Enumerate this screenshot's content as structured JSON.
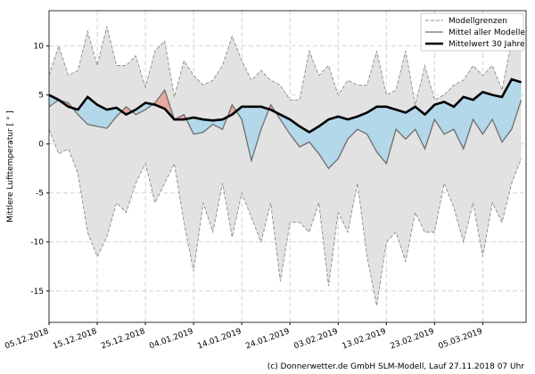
{
  "chart_data": {
    "type": "line",
    "ylabel": "Mittlere Lufttemperatur [ ° ]",
    "source": "(c) Donnerwetter.de GmbH SLM-Modell, Lauf 27.11.2018 07 Uhr",
    "x": [
      "2018-12-05",
      "2018-12-07",
      "2018-12-09",
      "2018-12-11",
      "2018-12-13",
      "2018-12-15",
      "2018-12-17",
      "2018-12-19",
      "2018-12-21",
      "2018-12-23",
      "2018-12-25",
      "2018-12-27",
      "2018-12-29",
      "2018-12-31",
      "2019-01-02",
      "2019-01-04",
      "2019-01-06",
      "2019-01-08",
      "2019-01-10",
      "2019-01-12",
      "2019-01-14",
      "2019-01-16",
      "2019-01-18",
      "2019-01-20",
      "2019-01-22",
      "2019-01-24",
      "2019-01-26",
      "2019-01-28",
      "2019-01-30",
      "2019-02-01",
      "2019-02-03",
      "2019-02-05",
      "2019-02-07",
      "2019-02-09",
      "2019-02-11",
      "2019-02-13",
      "2019-02-15",
      "2019-02-17",
      "2019-02-19",
      "2019-02-21",
      "2019-02-23",
      "2019-02-25",
      "2019-02-27",
      "2019-03-01",
      "2019-03-03",
      "2019-03-05",
      "2019-03-07",
      "2019-03-09",
      "2019-03-11",
      "2019-03-13"
    ],
    "xlim": [
      "2018-12-05",
      "2019-03-14"
    ],
    "xticks": [
      {
        "value": "2018-12-05",
        "label": "05.12.2018"
      },
      {
        "value": "2018-12-15",
        "label": "15.12.2018"
      },
      {
        "value": "2018-12-25",
        "label": "25.12.2018"
      },
      {
        "value": "2019-01-04",
        "label": "04.01.2019"
      },
      {
        "value": "2019-01-14",
        "label": "14.01.2019"
      },
      {
        "value": "2019-01-24",
        "label": "24.01.2019"
      },
      {
        "value": "2019-02-03",
        "label": "03.02.2019"
      },
      {
        "value": "2019-02-13",
        "label": "13.02.2019"
      },
      {
        "value": "2019-02-23",
        "label": "23.02.2019"
      },
      {
        "value": "2019-03-05",
        "label": "05.03.2019"
      }
    ],
    "ylim": [
      -18.2,
      13.6
    ],
    "yticks": [
      -15,
      -10,
      -5,
      0,
      5,
      10
    ],
    "grid": true,
    "legend": "upper right",
    "band_color": "#e2e2e2",
    "above_color": "#e8a8a2",
    "below_color": "#b3d8ea",
    "series": [
      {
        "name": "Modellgrenzen",
        "color": "#8c8c8c",
        "dashed": true,
        "upper": [
          7,
          10,
          7,
          7.5,
          11.5,
          8,
          12,
          8,
          8,
          9,
          5.8,
          9.5,
          10.5,
          4.8,
          8.5,
          7,
          6,
          6.5,
          8,
          11,
          8.5,
          6.5,
          7.5,
          6.5,
          6,
          4.5,
          4.5,
          9.5,
          7,
          8,
          5,
          6.5,
          6,
          6,
          9.5,
          5,
          5.5,
          9.5,
          4,
          8,
          4.5,
          5,
          6,
          6.5,
          8,
          7,
          8,
          5.5,
          10.5,
          11
        ],
        "lower": [
          1.5,
          -1,
          -0.5,
          -3,
          -9,
          -11.5,
          -9.5,
          -6,
          -7,
          -4,
          -2,
          -6,
          -4,
          -2,
          -8,
          -13,
          -6,
          -9,
          -4,
          -9.5,
          -5,
          -7.5,
          -10,
          -6,
          -14,
          -8,
          -8,
          -9,
          -6,
          -14.5,
          -7,
          -9,
          -4,
          -11.5,
          -16.5,
          -10,
          -9,
          -12,
          -7,
          -9,
          -9,
          -4,
          -6.5,
          -10,
          -6,
          -11.5,
          -6,
          -8,
          -4,
          -1.5
        ]
      },
      {
        "name": "Mittel aller Modelle",
        "color": "#6e6e6e",
        "width": 1.3,
        "values": [
          3.8,
          4.5,
          4.2,
          3,
          2,
          1.8,
          1.6,
          2.8,
          3.8,
          3,
          3.5,
          4.2,
          5.5,
          2.5,
          3,
          1,
          1.2,
          2,
          1.5,
          4,
          2.5,
          -1.7,
          1.5,
          4,
          2.5,
          1,
          -0.3,
          0.2,
          -1,
          -2.5,
          -1.5,
          0.5,
          1.5,
          1,
          -0.8,
          -2,
          1.5,
          0.5,
          1.5,
          -0.5,
          2.5,
          1,
          1.5,
          -0.5,
          2.5,
          1,
          2.5,
          0.2,
          1.5,
          4.5
        ]
      },
      {
        "name": "Mittelwert 30 Jahre",
        "color": "#000000",
        "width": 2.6,
        "values": [
          5,
          4.5,
          3.8,
          3.5,
          4.8,
          4,
          3.5,
          3.7,
          3,
          3.5,
          4.2,
          4,
          3.6,
          2.5,
          2.5,
          2.7,
          2.5,
          2.4,
          2.5,
          3,
          3.8,
          3.8,
          3.8,
          3.5,
          3,
          2.5,
          1.8,
          1.2,
          1.8,
          2.5,
          2.8,
          2.5,
          2.8,
          3.2,
          3.8,
          3.8,
          3.5,
          3.2,
          3.8,
          3,
          4,
          4.3,
          3.8,
          4.8,
          4.5,
          5.3,
          5,
          4.8,
          6.6,
          6.3
        ]
      }
    ]
  }
}
